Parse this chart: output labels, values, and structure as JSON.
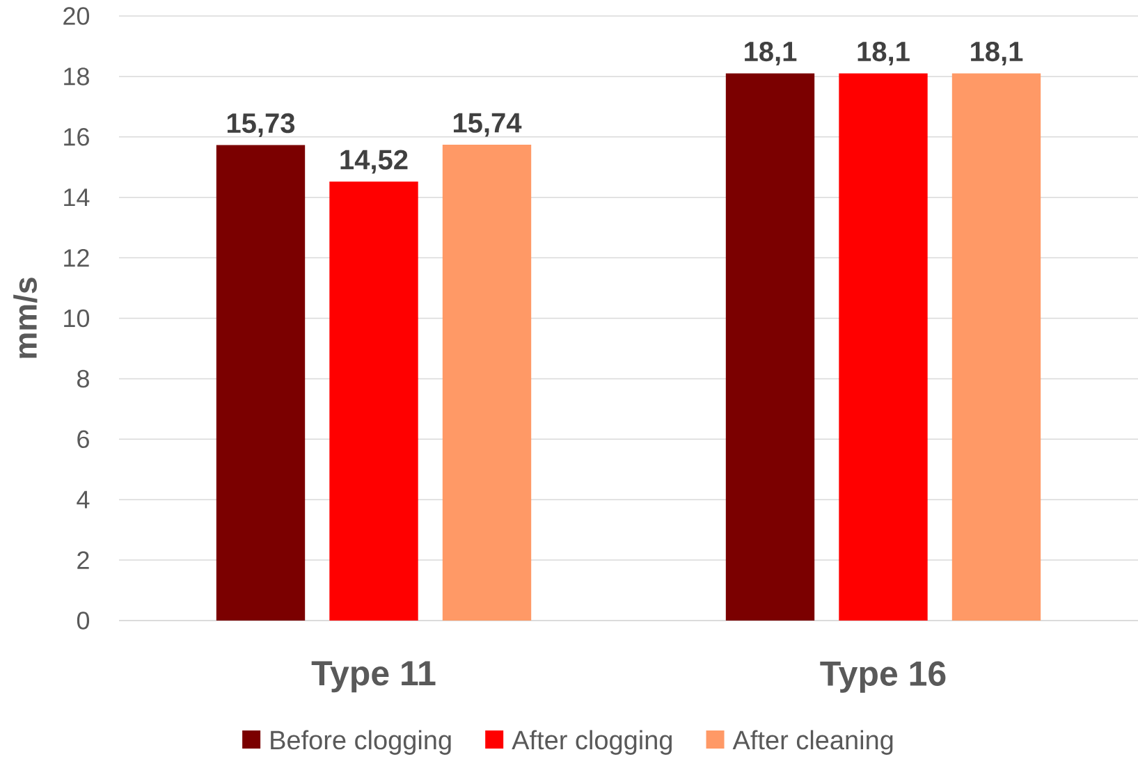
{
  "chart_data": {
    "type": "bar",
    "ylabel": "mm/s",
    "categories": [
      "Type 11",
      "Type 16"
    ],
    "series": [
      {
        "name": "Before clogging",
        "color": "#7b0000",
        "values": [
          15.73,
          18.1
        ],
        "value_labels": [
          "15,73",
          "18,1"
        ]
      },
      {
        "name": "After clogging",
        "color": "#ff0000",
        "values": [
          14.52,
          18.1
        ],
        "value_labels": [
          "14,52",
          "18,1"
        ]
      },
      {
        "name": "After cleaning",
        "color": "#ff9966",
        "values": [
          15.74,
          18.1
        ],
        "value_labels": [
          "15,74",
          "18,1"
        ]
      }
    ],
    "ylim": [
      0,
      20
    ],
    "yticks": [
      0,
      2,
      4,
      6,
      8,
      10,
      12,
      14,
      16,
      18,
      20
    ],
    "grid": "y",
    "legend": "bottom"
  }
}
